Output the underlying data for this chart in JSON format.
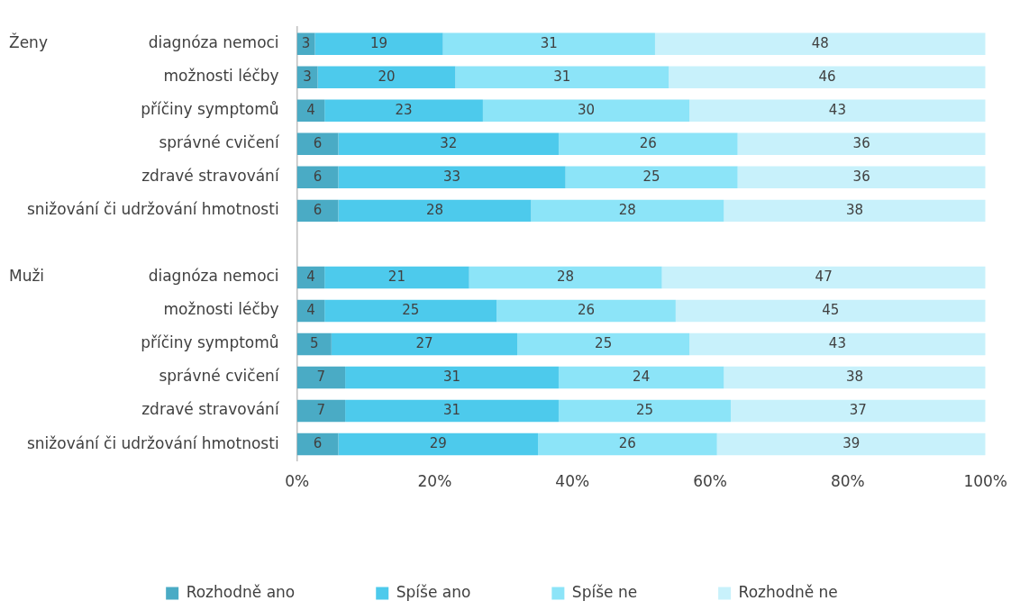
{
  "chart_data": {
    "type": "bar",
    "orientation": "horizontal",
    "stacked": true,
    "categories": [
      "diagnóza nemoci",
      "možnosti léčby",
      "příčiny symptomů",
      "správné cvičení",
      "zdravé stravování",
      "snižování či udržování hmotnosti",
      null,
      "diagnóza nemoci",
      "možnosti léčby",
      "příčiny symptomů",
      "správné cvičení",
      "zdravé stravování",
      "snižování či udržování hmotnosti"
    ],
    "series": [
      {
        "name": "Rozhodně ano",
        "color": "#4aabc5",
        "values": [
          2.6,
          3,
          4,
          6,
          6,
          6,
          null,
          4,
          4,
          5,
          7,
          7,
          6
        ],
        "value_labels": [
          "3",
          "3",
          "4",
          "6",
          "6",
          "6",
          null,
          "4",
          "4",
          "5",
          "7",
          "7",
          "6"
        ]
      },
      {
        "name": "Spíše ano",
        "color": "#4dcaec",
        "values": [
          18.6,
          20,
          23,
          32,
          33,
          28,
          null,
          21,
          25,
          27,
          31,
          31,
          29
        ],
        "value_labels": [
          "19",
          "20",
          "23",
          "32",
          "33",
          "28",
          null,
          "21",
          "25",
          "27",
          "31",
          "31",
          "29"
        ]
      },
      {
        "name": "Spíše ne",
        "color": "#8ce4f8",
        "values": [
          30.8,
          31,
          30,
          26,
          25,
          28,
          null,
          28,
          26,
          25,
          24,
          25,
          26
        ],
        "value_labels": [
          "31",
          "31",
          "30",
          "26",
          "25",
          "28",
          null,
          "28",
          "26",
          "25",
          "24",
          "25",
          "26"
        ]
      },
      {
        "name": "Rozhodně ne",
        "color": "#c8f1fb",
        "values": [
          48,
          46,
          43,
          36,
          36,
          38,
          null,
          47,
          45,
          43,
          38,
          37,
          39
        ],
        "value_labels": [
          "48",
          "46",
          "43",
          "36",
          "36",
          "38",
          null,
          "47",
          "45",
          "43",
          "38",
          "37",
          "39"
        ]
      }
    ],
    "xlim": [
      0,
      100
    ],
    "xticks": [
      {
        "value": 0,
        "label": "0%"
      },
      {
        "value": 20,
        "label": "20%"
      },
      {
        "value": 40,
        "label": "40%"
      },
      {
        "value": 60,
        "label": "60%"
      },
      {
        "value": 80,
        "label": "80%"
      },
      {
        "value": 100,
        "label": "100%"
      }
    ],
    "annotations": [
      "Ženy",
      "Muži"
    ],
    "legend": "bottom",
    "grid": false
  }
}
